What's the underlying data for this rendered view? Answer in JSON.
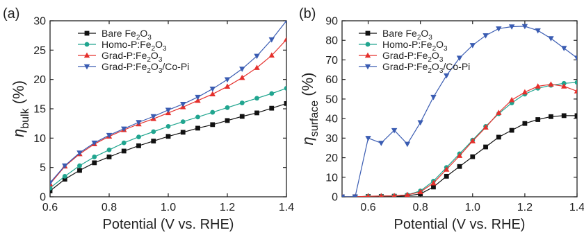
{
  "colors": {
    "bare": "#111111",
    "homo": "#20a58f",
    "grad": "#e5302c",
    "copi": "#3a5cb2"
  },
  "chart_data": [
    {
      "type": "line",
      "panel_label": "(a)",
      "ylabel_symbol": "η",
      "ylabel_sub": "bulk",
      "ylabel_unit": "(%)",
      "xlabel": "Potential (V vs. RHE)",
      "xlim": [
        0.6,
        1.4
      ],
      "ylim": [
        0,
        30
      ],
      "xticks": [
        0.6,
        0.8,
        1.0,
        1.2,
        1.4
      ],
      "yticks": [
        0,
        5,
        10,
        15,
        20,
        25,
        30
      ],
      "x": [
        0.6,
        0.65,
        0.7,
        0.75,
        0.8,
        0.85,
        0.9,
        0.95,
        1.0,
        1.05,
        1.1,
        1.15,
        1.2,
        1.25,
        1.3,
        1.35,
        1.4
      ],
      "series": [
        {
          "name": "Bare Fe2O3",
          "marker": "square",
          "values": [
            1.0,
            3.0,
            4.5,
            5.8,
            6.8,
            7.8,
            8.7,
            9.5,
            10.3,
            11.0,
            11.7,
            12.3,
            13.0,
            13.7,
            14.3,
            15.1,
            15.9
          ]
        },
        {
          "name": "Homo-P:Fe2O3",
          "marker": "circle",
          "values": [
            1.5,
            3.5,
            5.3,
            6.8,
            8.0,
            9.2,
            10.2,
            11.1,
            12.0,
            12.8,
            13.6,
            14.4,
            15.2,
            16.0,
            16.8,
            17.6,
            18.5
          ]
        },
        {
          "name": "Grad-P:Fe2O3",
          "marker": "triangle-up",
          "values": [
            2.2,
            5.2,
            7.3,
            9.0,
            10.3,
            11.4,
            12.4,
            13.3,
            14.3,
            15.3,
            16.4,
            17.5,
            18.8,
            20.3,
            22.0,
            24.1,
            26.8
          ]
        },
        {
          "name": "Grad-P:Fe2O3/Co-Pi",
          "marker": "triangle-down",
          "values": [
            2.4,
            5.3,
            7.5,
            9.2,
            10.5,
            11.6,
            12.7,
            13.7,
            14.8,
            15.8,
            17.0,
            18.4,
            20.0,
            21.8,
            24.0,
            26.8,
            30.0
          ]
        }
      ],
      "legend": [
        {
          "base": "Bare Fe",
          "sub": "2",
          "mid": "O",
          "sub2": "3",
          "tail": ""
        },
        {
          "base": "Homo-P:Fe",
          "sub": "2",
          "mid": "O",
          "sub2": "3",
          "tail": ""
        },
        {
          "base": "Grad-P:Fe",
          "sub": "2",
          "mid": "O",
          "sub2": "3",
          "tail": ""
        },
        {
          "base": "Grad-P:Fe",
          "sub": "2",
          "mid": "O",
          "sub2": "3",
          "tail": "/Co-Pi"
        }
      ],
      "legend_position": "top-left"
    },
    {
      "type": "line",
      "panel_label": "(b)",
      "ylabel_symbol": "η",
      "ylabel_sub": "surface",
      "ylabel_unit": "(%)",
      "xlabel": "Potential (V vs. RHE)",
      "xlim": [
        0.5,
        1.4
      ],
      "ylim": [
        0,
        90
      ],
      "xticks": [
        0.6,
        0.8,
        1.0,
        1.2,
        1.4
      ],
      "yticks": [
        0,
        10,
        20,
        30,
        40,
        50,
        60,
        70,
        80,
        90
      ],
      "x": [
        0.5,
        0.55,
        0.6,
        0.65,
        0.7,
        0.75,
        0.8,
        0.85,
        0.9,
        0.95,
        1.0,
        1.05,
        1.1,
        1.15,
        1.2,
        1.25,
        1.3,
        1.35,
        1.4
      ],
      "series": [
        {
          "name": "Bare Fe2O3",
          "marker": "square",
          "values": [
            0,
            0,
            0.2,
            0.2,
            0.3,
            0.5,
            1.5,
            5.0,
            10.5,
            15.5,
            20.5,
            25.5,
            30.5,
            34.0,
            37.5,
            39.5,
            41.0,
            41.5,
            41.5
          ]
        },
        {
          "name": "Homo-P:Fe2O3",
          "marker": "circle",
          "values": [
            0,
            0,
            0.3,
            0.4,
            0.5,
            1.0,
            3.0,
            8.0,
            15.0,
            22.0,
            29.0,
            36.0,
            42.5,
            48.0,
            52.5,
            55.5,
            57.0,
            58.0,
            58.5
          ]
        },
        {
          "name": "Grad-P:Fe2O3",
          "marker": "triangle-up",
          "values": [
            0,
            0,
            0.3,
            0.4,
            0.5,
            1.0,
            2.5,
            7.0,
            14.0,
            21.0,
            28.5,
            35.5,
            43.0,
            49.5,
            53.5,
            56.5,
            57.5,
            56.5,
            54.0
          ]
        },
        {
          "name": "Grad-P:Fe2O3/Co-Pi",
          "marker": "triangle-down",
          "values": [
            0,
            0,
            30.0,
            27.5,
            34.0,
            27.0,
            38.0,
            51.0,
            62.0,
            71.0,
            77.5,
            82.5,
            86.0,
            87.0,
            87.2,
            85.0,
            81.0,
            76.0,
            71.0
          ]
        }
      ],
      "legend": [
        {
          "base": "Bare Fe",
          "sub": "2",
          "mid": "O",
          "sub2": "3",
          "tail": ""
        },
        {
          "base": "Homo-P:Fe",
          "sub": "2",
          "mid": "O",
          "sub2": "3",
          "tail": ""
        },
        {
          "base": "Grad-P:Fe",
          "sub": "2",
          "mid": "O",
          "sub2": "3",
          "tail": ""
        },
        {
          "base": "Grad-P:Fe",
          "sub": "2",
          "mid": "O",
          "sub2": "3",
          "tail": "/Co-Pi"
        }
      ],
      "legend_position": "top-left"
    }
  ]
}
